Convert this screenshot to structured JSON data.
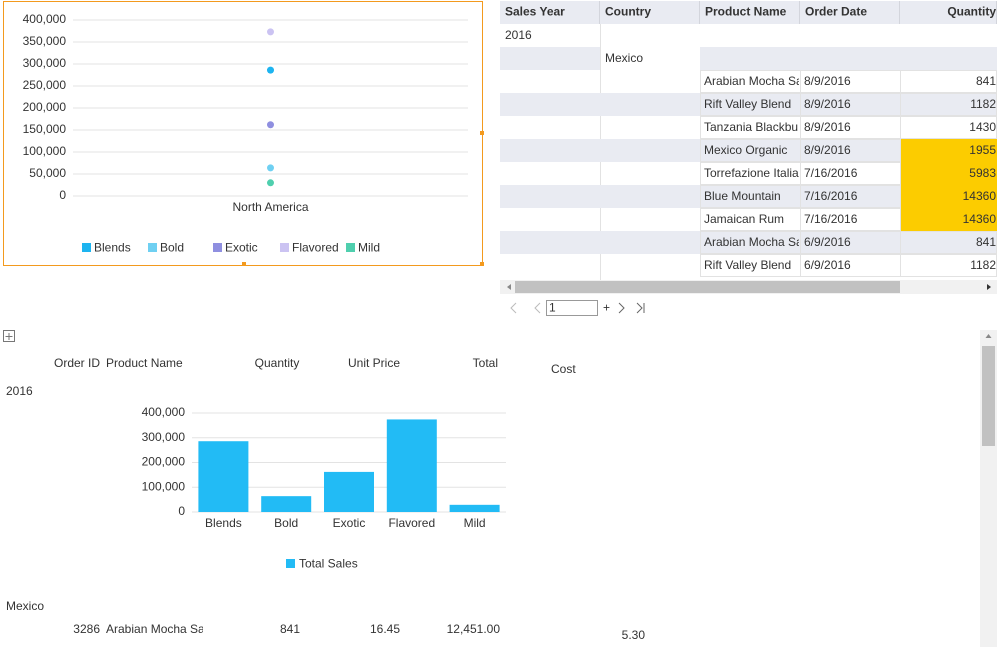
{
  "chart_data": [
    {
      "type": "dot",
      "categories": [
        "North America"
      ],
      "series": [
        {
          "name": "Blends",
          "color": "#1db4f0",
          "values": [
            286000
          ]
        },
        {
          "name": "Bold",
          "color": "#6fd0f2",
          "values": [
            64000
          ]
        },
        {
          "name": "Exotic",
          "color": "#8f8fe0",
          "values": [
            162000
          ]
        },
        {
          "name": "Flavored",
          "color": "#cbc3f2",
          "values": [
            373000
          ]
        },
        {
          "name": "Mild",
          "color": "#4fcfae",
          "values": [
            30000
          ]
        }
      ],
      "ylim": [
        0,
        400000
      ],
      "yticks": [
        0,
        {
          "value": 50000,
          "label": "50,000"
        },
        {
          "value": 100000,
          "label": "100,000"
        },
        {
          "value": 150000,
          "label": "150,000"
        },
        {
          "value": 200000,
          "label": "200,000"
        },
        {
          "value": 250000,
          "label": "250,000"
        },
        {
          "value": 300000,
          "label": "300,000"
        },
        {
          "value": 350000,
          "label": "350,000"
        },
        {
          "value": 400000,
          "label": "400,000"
        }
      ],
      "grid": true
    },
    {
      "type": "bar",
      "categories": [
        "Blends",
        "Bold",
        "Exotic",
        "Flavored",
        "Mild"
      ],
      "series": [
        {
          "name": "Total Sales",
          "color": "#22bbf5",
          "values": [
            286000,
            64000,
            162000,
            374000,
            29000
          ]
        }
      ],
      "ylim": [
        0,
        400000
      ],
      "yticks": [
        0,
        {
          "value": 100000,
          "label": "100,000"
        },
        {
          "value": 200000,
          "label": "200,000"
        },
        {
          "value": 300000,
          "label": "300,000"
        },
        {
          "value": 400000,
          "label": "400,000"
        }
      ],
      "grid": true
    }
  ],
  "table": {
    "header": [
      "Sales Year",
      "Country",
      "Product Name",
      "Order Date",
      "Quantity"
    ],
    "year": "2016",
    "country": "Mexico",
    "highlight_color": "#fccc00",
    "rows": [
      {
        "product": "Arabian Mocha Sa",
        "date": "8/9/2016",
        "quantity": "841"
      },
      {
        "product": "Rift Valley Blend",
        "date": "8/9/2016",
        "quantity": "1182"
      },
      {
        "product": "Tanzania Blackbu",
        "date": "8/9/2016",
        "quantity": "1430"
      },
      {
        "product": "Mexico Organic",
        "date": "8/9/2016",
        "quantity": "1955",
        "highlighted": true
      },
      {
        "product": "Torrefazione Italia",
        "date": "7/16/2016",
        "quantity": "5983",
        "highlighted": true
      },
      {
        "product": "Blue Mountain",
        "date": "7/16/2016",
        "quantity": "14360",
        "highlighted": true
      },
      {
        "product": "Jamaican Rum",
        "date": "7/16/2016",
        "quantity": "14360",
        "highlighted": true
      },
      {
        "product": "Arabian Mocha Sa",
        "date": "6/9/2016",
        "quantity": "841"
      },
      {
        "product": "Rift Valley Blend",
        "date": "6/9/2016",
        "quantity": "1182"
      }
    ]
  },
  "pager": {
    "page": "1",
    "add": "+"
  },
  "report": {
    "header": [
      "Order ID",
      "Product Name",
      "Quantity",
      "Unit Price",
      "Total"
    ],
    "cost_header": "Cost",
    "year": "2016",
    "country": "Mexico",
    "row": [
      "3286",
      "Arabian Mocha Sa",
      "841",
      "16.45",
      "12,451.00"
    ],
    "cost": "5.30"
  }
}
